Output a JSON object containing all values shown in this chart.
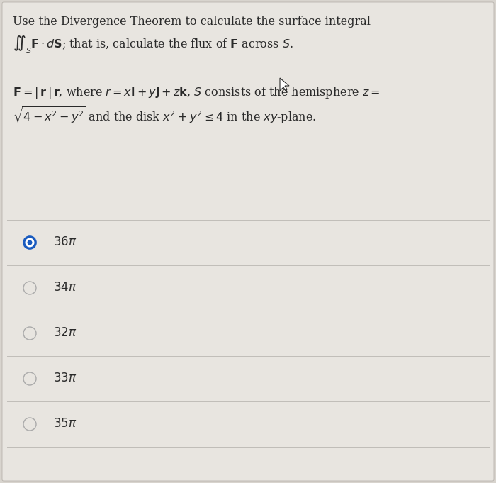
{
  "bg_color": "#d8d4ce",
  "panel_color": "#e8e5e0",
  "text_color": "#2a2a2a",
  "title_line1": "Use the Divergence Theorem to calculate the surface integral",
  "title_line2": "$\\iint_S\\mathbf{F}\\cdot d\\mathbf{S}$; that is, calculate the flux of $\\mathbf{F}$ across $S$.",
  "problem_line1": "$\\mathbf{F} = |\\,\\mathbf{r}\\,|\\,\\mathbf{r}$, where $r = x\\mathbf{i} + y\\mathbf{j} + z\\mathbf{k}$, $S$ consists of the hemisphere $z =$",
  "problem_line2": "$\\sqrt{4 - x^2 - y^2}$ and the disk $x^2 + y^2 \\leq 4$ in the $xy$-plane.",
  "options": [
    "$36\\pi$",
    "$34\\pi$",
    "$32\\pi$",
    "$33\\pi$",
    "$35\\pi$"
  ],
  "correct_index": 0,
  "selected_fill": "#1a5bbf",
  "selected_edge": "#1a5bbf",
  "unselected_edge": "#aaaaaa",
  "divider_color": "#c0bdb8",
  "font_size_title": 11.5,
  "font_size_problem": 11.5,
  "font_size_options": 12
}
